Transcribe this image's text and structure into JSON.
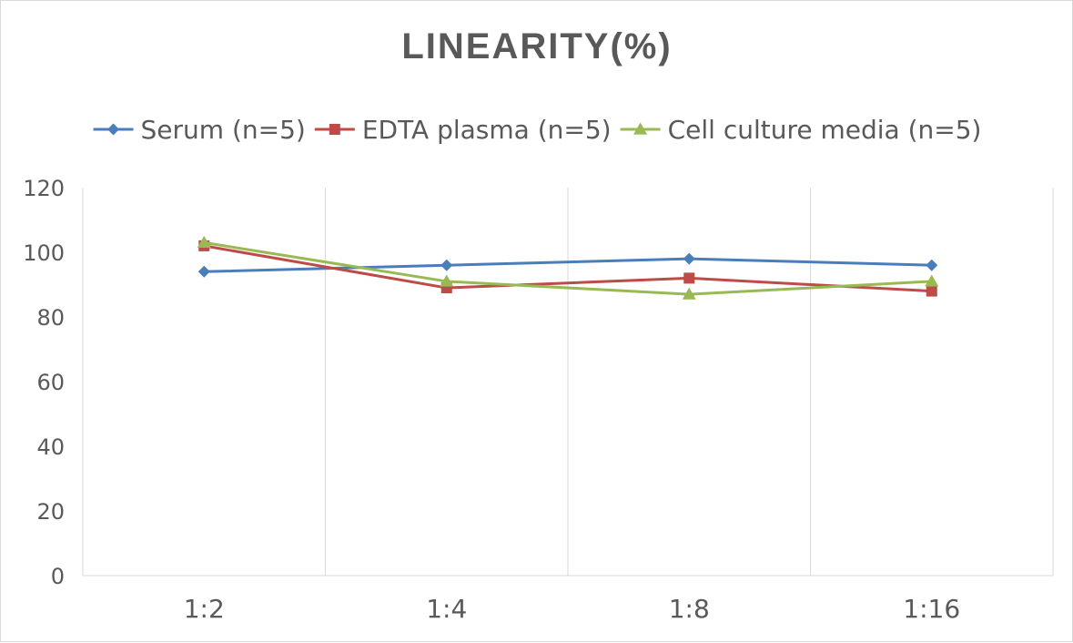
{
  "chart_data": {
    "type": "line",
    "title": "LINEARITY(%)",
    "xlabel": "",
    "ylabel": "",
    "categories": [
      "1:2",
      "1:4",
      "1:8",
      "1:16"
    ],
    "ylim": [
      0,
      120
    ],
    "yticks": [
      0,
      20,
      40,
      60,
      80,
      100,
      120
    ],
    "grid": "vertical",
    "legend_position": "top",
    "series": [
      {
        "name": "Serum (n=5)",
        "values": [
          94,
          96,
          98,
          96
        ],
        "color": "#4a7ebb",
        "marker": "diamond"
      },
      {
        "name": "EDTA plasma (n=5)",
        "values": [
          102,
          89,
          92,
          88
        ],
        "color": "#be4b48",
        "marker": "square"
      },
      {
        "name": "Cell culture media (n=5)",
        "values": [
          103,
          91,
          87,
          91
        ],
        "color": "#98b954",
        "marker": "triangle"
      }
    ]
  }
}
